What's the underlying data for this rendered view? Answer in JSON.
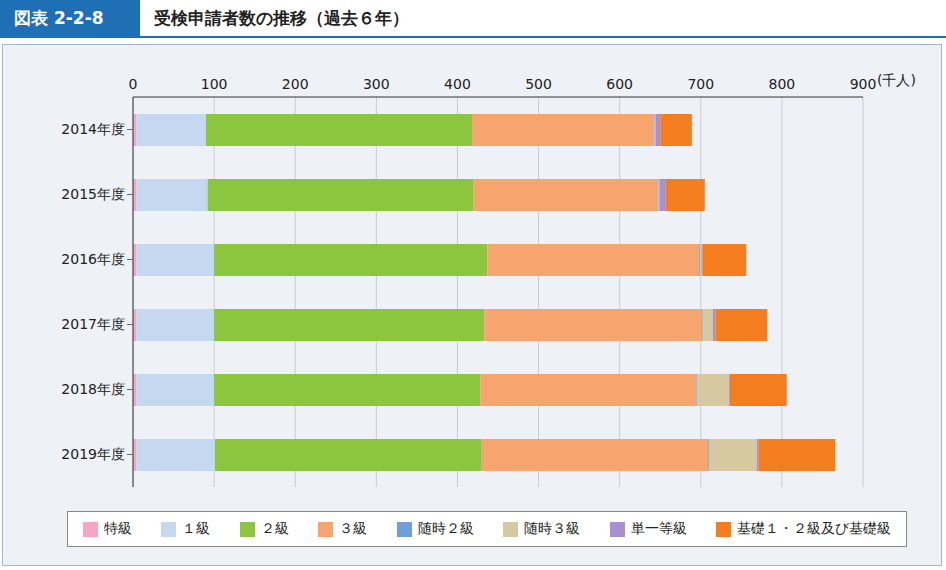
{
  "figure_label": "図表 2-2-8",
  "chart_data": {
    "type": "bar",
    "title": "受検申請者数の推移（過去６年）",
    "orientation": "horizontal",
    "stacked": true,
    "grid": true,
    "legend": "bottom",
    "xlabel": "(千人)",
    "xlim": [
      0,
      900
    ],
    "xticks": [
      0,
      100,
      200,
      300,
      400,
      500,
      600,
      700,
      800,
      900
    ],
    "categories": [
      "2014年度",
      "2015年度",
      "2016年度",
      "2017年度",
      "2018年度",
      "2019年度"
    ],
    "series": [
      {
        "name": "特級",
        "color": "#f4a6c4",
        "values": [
          4,
          4,
          4,
          4,
          4,
          4
        ]
      },
      {
        "name": "１級",
        "color": "#c6d8f0",
        "values": [
          86,
          88,
          96,
          96,
          96,
          97
        ]
      },
      {
        "name": "２級",
        "color": "#8cc63e",
        "values": [
          328,
          328,
          337,
          333,
          328,
          329
        ]
      },
      {
        "name": "３級",
        "color": "#f7a56e",
        "values": [
          224,
          227,
          261,
          269,
          266,
          279
        ]
      },
      {
        "name": "随時２級",
        "color": "#6f9fd8",
        "values": [
          1,
          1,
          1,
          1,
          1,
          1
        ]
      },
      {
        "name": "随時３級",
        "color": "#d6c8a0",
        "values": [
          1,
          1,
          2,
          12,
          40,
          59
        ]
      },
      {
        "name": "単一等級",
        "color": "#a98fd0",
        "values": [
          6,
          8,
          1,
          3,
          1,
          2
        ]
      },
      {
        "name": "基礎１・２級及び基礎級",
        "color": "#f47d20",
        "values": [
          39,
          48,
          54,
          64,
          70,
          95
        ]
      }
    ]
  }
}
